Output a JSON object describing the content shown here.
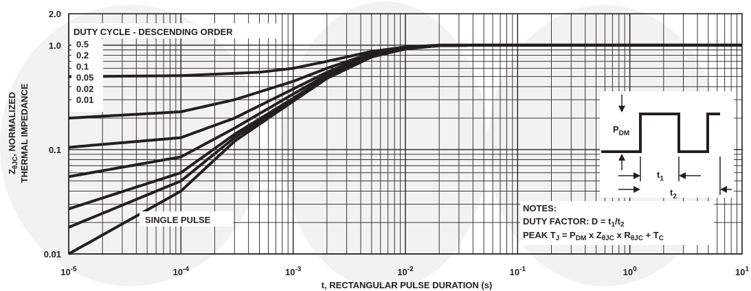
{
  "chart_data": {
    "type": "line",
    "xscale": "log",
    "yscale": "log",
    "xlim": [
      1e-05,
      10
    ],
    "ylim": [
      0.01,
      2.0
    ],
    "grid": true,
    "xlabel": "t, RECTANGULAR PULSE DURATION (s)",
    "ylabel_line1_pre": "Z",
    "ylabel_line1_sub": "θJC",
    "ylabel_line1_post": ", NORMALIZED",
    "ylabel_line2": "THERMAL IMPEDANCE",
    "x_ticks": [
      {
        "base": "10",
        "exp": "-5"
      },
      {
        "base": "10",
        "exp": "-4"
      },
      {
        "base": "10",
        "exp": "-3"
      },
      {
        "base": "10",
        "exp": "-2"
      },
      {
        "base": "10",
        "exp": "-1"
      },
      {
        "base": "10",
        "exp": "0"
      },
      {
        "base": "10",
        "exp": "1"
      }
    ],
    "y_ticks": [
      {
        "value": 2.0,
        "label": "2.0"
      },
      {
        "value": 1.0,
        "label": "1.0"
      },
      {
        "value": 0.1,
        "label": "0.1"
      },
      {
        "value": 0.01,
        "label": "0.01"
      }
    ],
    "legend_title": "DUTY CYCLE - DESCENDING ORDER",
    "legend_items": [
      "0.5",
      "0.2",
      "0.1",
      "0.05",
      "0.02",
      "0.01"
    ],
    "series": [
      {
        "name": "0.5",
        "x": [
          1e-05,
          0.0001,
          0.0005,
          0.001,
          0.002,
          0.005,
          0.01,
          0.02,
          0.05,
          10
        ],
        "y": [
          0.5,
          0.51,
          0.55,
          0.6,
          0.7,
          0.87,
          0.96,
          1.0,
          1.0,
          1.0
        ]
      },
      {
        "name": "0.2",
        "x": [
          1e-05,
          0.0001,
          0.0003,
          0.001,
          0.002,
          0.005,
          0.01,
          0.02,
          0.05,
          10
        ],
        "y": [
          0.2,
          0.23,
          0.3,
          0.45,
          0.6,
          0.84,
          0.95,
          1.0,
          1.0,
          1.0
        ]
      },
      {
        "name": "0.1",
        "x": [
          1e-05,
          0.0001,
          0.0003,
          0.001,
          0.002,
          0.005,
          0.01,
          0.02,
          0.05,
          10
        ],
        "y": [
          0.105,
          0.13,
          0.2,
          0.38,
          0.55,
          0.82,
          0.94,
          0.99,
          1.0,
          1.0
        ]
      },
      {
        "name": "0.05",
        "x": [
          1e-05,
          0.0001,
          0.0003,
          0.001,
          0.002,
          0.005,
          0.01,
          0.02,
          0.05,
          10
        ],
        "y": [
          0.055,
          0.085,
          0.16,
          0.34,
          0.52,
          0.8,
          0.93,
          0.99,
          1.0,
          1.0
        ]
      },
      {
        "name": "0.02",
        "x": [
          1e-05,
          0.0001,
          0.0003,
          0.001,
          0.002,
          0.005,
          0.01,
          0.02,
          0.05,
          10
        ],
        "y": [
          0.027,
          0.06,
          0.14,
          0.31,
          0.5,
          0.79,
          0.93,
          0.99,
          1.0,
          1.0
        ]
      },
      {
        "name": "0.01",
        "x": [
          1e-05,
          0.0001,
          0.0003,
          0.001,
          0.002,
          0.005,
          0.01,
          0.02,
          0.05,
          10
        ],
        "y": [
          0.018,
          0.05,
          0.13,
          0.3,
          0.49,
          0.78,
          0.92,
          0.99,
          1.0,
          1.0
        ]
      },
      {
        "name": "SINGLE PULSE",
        "x": [
          1e-05,
          0.0001,
          0.0003,
          0.001,
          0.002,
          0.005,
          0.01,
          0.02,
          0.05,
          10
        ],
        "y": [
          0.01,
          0.04,
          0.12,
          0.29,
          0.48,
          0.77,
          0.92,
          0.99,
          1.0,
          1.0
        ]
      }
    ],
    "single_pulse_label": "SINGLE PULSE",
    "inset": {
      "pdm_base": "P",
      "pdm_sub": "DM",
      "t1_base": "t",
      "t1_sub": "1",
      "t2_base": "t",
      "t2_sub": "2"
    },
    "notes": {
      "title": "NOTES:",
      "duty_pre": "DUTY FACTOR: D = t",
      "duty_sub1": "1",
      "duty_mid": "/t",
      "duty_sub2": "2",
      "peak_parts": [
        {
          "t": "PEAK T",
          "sub": false
        },
        {
          "t": "J",
          "sub": true
        },
        {
          "t": " = P",
          "sub": false
        },
        {
          "t": "DM",
          "sub": true
        },
        {
          "t": " x Z",
          "sub": false
        },
        {
          "t": "θJC",
          "sub": true
        },
        {
          "t": " x R",
          "sub": false
        },
        {
          "t": "θJC",
          "sub": true
        },
        {
          "t": " + T",
          "sub": false
        },
        {
          "t": "C",
          "sub": true
        }
      ]
    },
    "colors": {
      "curve": "#231f20",
      "grid": "#231f20",
      "text": "#231f20",
      "background": "#ffffff",
      "watermark": "#f2f2f2"
    }
  }
}
